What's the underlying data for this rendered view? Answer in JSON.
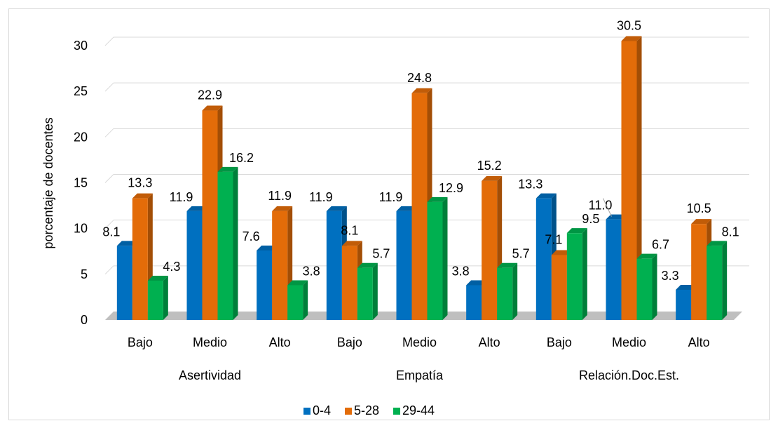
{
  "chart_data": {
    "type": "bar",
    "title": "",
    "ylabel": "porcentaje de docentes",
    "xlabel": "",
    "ylim": [
      0,
      30
    ],
    "yticks": [
      0,
      5,
      10,
      15,
      20,
      25,
      30
    ],
    "grid": true,
    "legend_position": "bottom",
    "groups": [
      "Asertividad",
      "Empatía",
      "Relación.Doc.Est."
    ],
    "categories": [
      "Bajo",
      "Medio",
      "Alto",
      "Bajo",
      "Medio",
      "Alto",
      "Bajo",
      "Medio",
      "Alto"
    ],
    "series": [
      {
        "name": "0-4",
        "color": "#0070c0",
        "values": [
          8.1,
          11.9,
          7.6,
          11.9,
          11.9,
          3.8,
          13.3,
          11.0,
          3.3
        ]
      },
      {
        "name": "5-28",
        "color": "#e36c09",
        "values": [
          13.3,
          22.9,
          11.9,
          8.1,
          24.8,
          15.2,
          7.1,
          30.5,
          10.5
        ]
      },
      {
        "name": "29-44",
        "color": "#00b050",
        "values": [
          4.3,
          16.2,
          3.8,
          5.7,
          12.9,
          5.7,
          9.5,
          6.7,
          8.1
        ]
      }
    ],
    "data_labels": [
      [
        "8.1",
        "11.9",
        "7.6",
        "11.9",
        "11.9",
        "3.8",
        "13.3",
        "11.0",
        "3.3"
      ],
      [
        "13.3",
        "22.9",
        "11.9",
        "8.1",
        "24.8",
        "15.2",
        "7.1",
        "30.5",
        "10.5"
      ],
      [
        "4.3",
        "16.2",
        "3.8",
        "5.7",
        "12.9",
        "5.7",
        "9.5",
        "6.7",
        "8.1"
      ]
    ]
  }
}
